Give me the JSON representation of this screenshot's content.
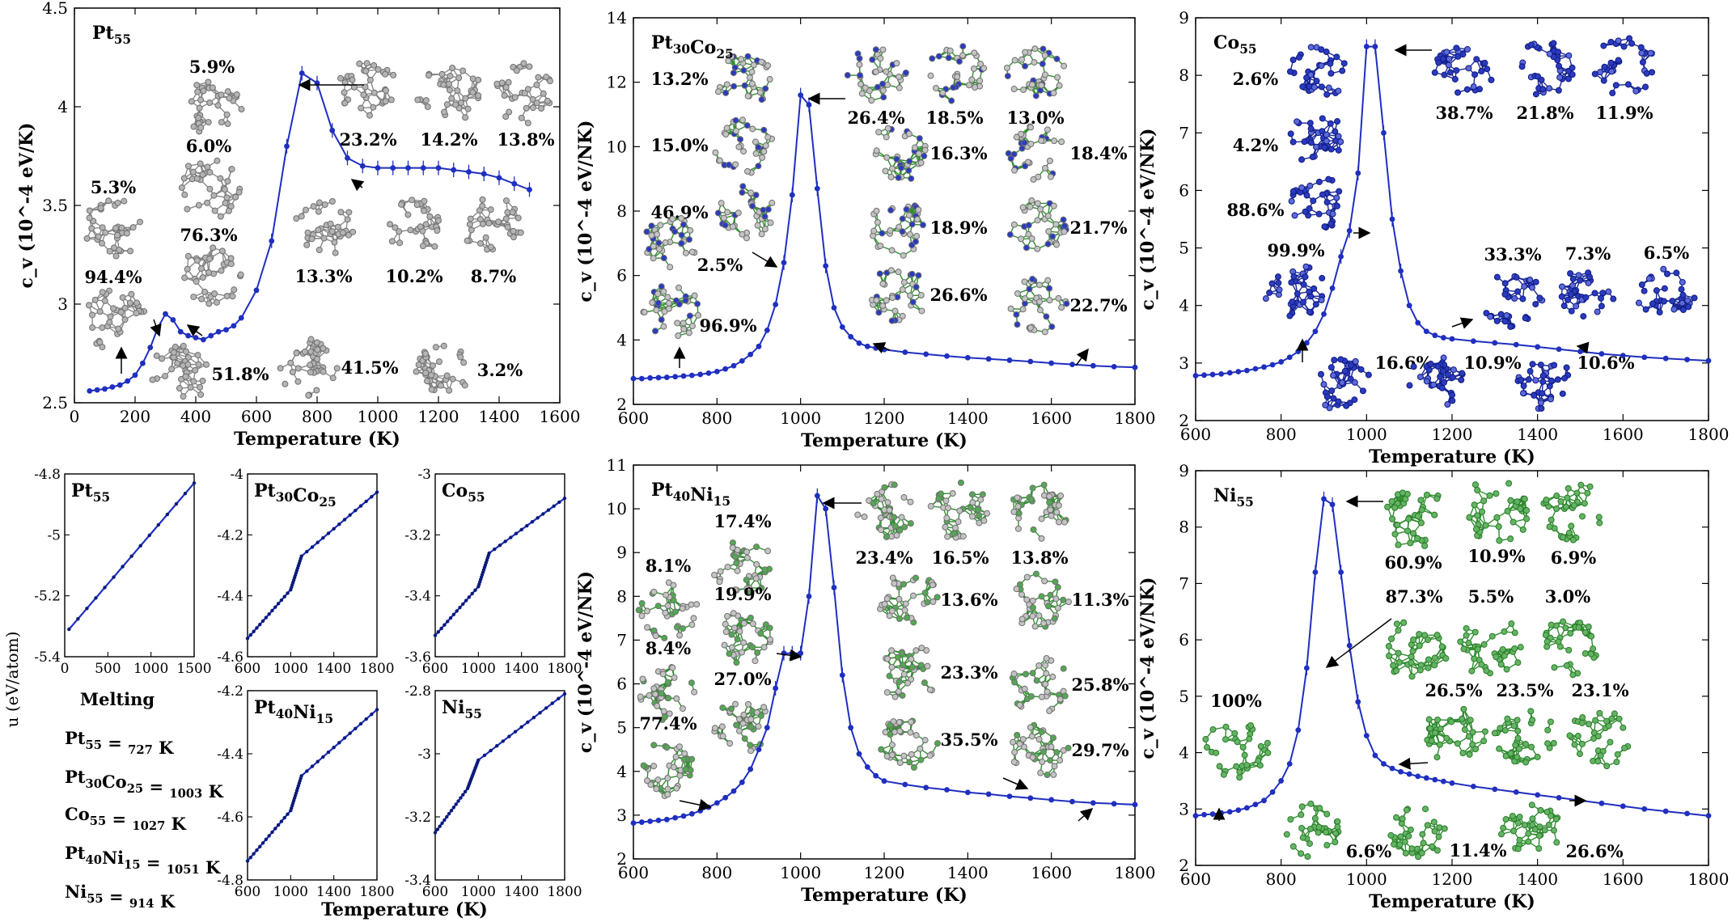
{
  "colors": {
    "curve": "#1f2fbf",
    "pt": "#a8a8a8",
    "co": "#1f2fa8",
    "ni": "#3f9f3f"
  },
  "chart_data": [
    {
      "id": "pt55",
      "type": "line",
      "title": "Pt55",
      "xlabel": "Temperature (K)",
      "ylabel": "c_v (10^-4 eV/K)",
      "xlim": [
        0,
        1600
      ],
      "ylim": [
        2.5,
        4.5
      ],
      "xticks": [
        0,
        200,
        400,
        600,
        800,
        1000,
        1200,
        1400,
        1600
      ],
      "yticks": [
        2.5,
        3.0,
        3.5,
        4.0,
        4.5
      ],
      "cluster_color": "pt",
      "series": [
        {
          "x": [
            50,
            75,
            100,
            125,
            150,
            175,
            200,
            225,
            250,
            275,
            300,
            325,
            350,
            375,
            400,
            425,
            450,
            475,
            500,
            525,
            550,
            600,
            650,
            700,
            750,
            800,
            850,
            900,
            950,
            1000,
            1050,
            1100,
            1150,
            1200,
            1250,
            1300,
            1350,
            1400,
            1450,
            1500
          ],
          "y": [
            2.56,
            2.565,
            2.57,
            2.58,
            2.59,
            2.61,
            2.64,
            2.7,
            2.78,
            2.88,
            2.95,
            2.92,
            2.86,
            2.84,
            2.83,
            2.82,
            2.84,
            2.86,
            2.87,
            2.89,
            2.93,
            3.07,
            3.32,
            3.8,
            4.17,
            4.12,
            3.88,
            3.74,
            3.7,
            3.69,
            3.69,
            3.69,
            3.69,
            3.69,
            3.68,
            3.67,
            3.66,
            3.64,
            3.61,
            3.58
          ]
        }
      ],
      "labels": [
        "5.9%",
        "6.0%",
        "76.3%",
        "5.3%",
        "94.4%",
        "51.8%",
        "41.5%",
        "3.2%",
        "23.2%",
        "14.2%",
        "13.8%",
        "13.3%",
        "10.2%",
        "8.7%"
      ]
    },
    {
      "id": "ptco",
      "type": "line",
      "title": "Pt30Co25",
      "xlabel": "Temperature (K)",
      "ylabel": "c_v (10^-4 eV/NK)",
      "xlim": [
        600,
        1800
      ],
      "ylim": [
        2,
        14
      ],
      "xticks": [
        600,
        800,
        1000,
        1200,
        1400,
        1600,
        1800
      ],
      "yticks": [
        2,
        4,
        6,
        8,
        10,
        12,
        14
      ],
      "cluster_color": "co",
      "series": [
        {
          "x": [
            600,
            620,
            640,
            660,
            680,
            700,
            720,
            740,
            760,
            780,
            800,
            820,
            840,
            860,
            880,
            900,
            920,
            940,
            960,
            980,
            1000,
            1020,
            1040,
            1060,
            1080,
            1100,
            1120,
            1140,
            1160,
            1180,
            1200,
            1250,
            1300,
            1350,
            1400,
            1450,
            1500,
            1550,
            1600,
            1650,
            1700,
            1750,
            1800
          ],
          "y": [
            2.8,
            2.8,
            2.82,
            2.83,
            2.84,
            2.86,
            2.88,
            2.9,
            2.93,
            2.97,
            3.02,
            3.1,
            3.2,
            3.35,
            3.55,
            3.8,
            4.3,
            5.1,
            6.4,
            8.5,
            11.6,
            11.3,
            8.7,
            6.3,
            5.0,
            4.4,
            4.1,
            3.9,
            3.8,
            3.75,
            3.7,
            3.62,
            3.56,
            3.5,
            3.45,
            3.41,
            3.37,
            3.33,
            3.28,
            3.24,
            3.2,
            3.17,
            3.15
          ]
        }
      ],
      "labels": [
        "13.2%",
        "15.0%",
        "46.9%",
        "2.5%",
        "96.9%",
        "26.4%",
        "18.5%",
        "13.0%",
        "16.3%",
        "18.4%",
        "18.9%",
        "21.7%",
        "26.6%",
        "22.7%"
      ]
    },
    {
      "id": "co55",
      "type": "line",
      "title": "Co55",
      "xlabel": "Temperature (K)",
      "ylabel": "c_v (10^-4 eV/NK)",
      "xlim": [
        600,
        1800
      ],
      "ylim": [
        2,
        9
      ],
      "xticks": [
        600,
        800,
        1000,
        1200,
        1400,
        1600,
        1800
      ],
      "yticks": [
        2,
        3,
        4,
        5,
        6,
        7,
        8,
        9
      ],
      "cluster_color": "co",
      "series": [
        {
          "x": [
            600,
            620,
            640,
            660,
            680,
            700,
            720,
            740,
            760,
            780,
            800,
            820,
            840,
            860,
            880,
            900,
            920,
            940,
            960,
            980,
            1000,
            1020,
            1040,
            1060,
            1080,
            1100,
            1120,
            1140,
            1160,
            1180,
            1200,
            1250,
            1300,
            1350,
            1400,
            1450,
            1500,
            1550,
            1600,
            1650,
            1700,
            1750,
            1800
          ],
          "y": [
            2.78,
            2.79,
            2.8,
            2.81,
            2.83,
            2.85,
            2.87,
            2.9,
            2.93,
            2.97,
            3.02,
            3.1,
            3.2,
            3.35,
            3.55,
            3.85,
            4.3,
            4.85,
            5.3,
            6.3,
            8.5,
            8.5,
            7.0,
            5.5,
            4.6,
            4.0,
            3.7,
            3.55,
            3.48,
            3.44,
            3.42,
            3.38,
            3.35,
            3.32,
            3.28,
            3.24,
            3.2,
            3.16,
            3.13,
            3.1,
            3.08,
            3.06,
            3.04
          ]
        }
      ],
      "labels": [
        "2.6%",
        "4.2%",
        "88.6%",
        "99.9%",
        "38.7%",
        "21.8%",
        "11.9%",
        "33.3%",
        "7.3%",
        "6.5%",
        "16.6%",
        "10.9%",
        "10.6%"
      ]
    },
    {
      "id": "ptni",
      "type": "line",
      "title": "Pt40Ni15",
      "xlabel": "Temperature (K)",
      "ylabel": "c_v (10^-4 eV/NK)",
      "xlim": [
        600,
        1800
      ],
      "ylim": [
        2,
        11
      ],
      "xticks": [
        600,
        800,
        1000,
        1200,
        1400,
        1600,
        1800
      ],
      "yticks": [
        2,
        3,
        4,
        5,
        6,
        7,
        8,
        9,
        10,
        11
      ],
      "cluster_color": "ni",
      "series": [
        {
          "x": [
            600,
            620,
            640,
            660,
            680,
            700,
            720,
            740,
            760,
            780,
            800,
            820,
            840,
            860,
            880,
            900,
            920,
            940,
            960,
            980,
            1000,
            1020,
            1040,
            1060,
            1080,
            1100,
            1120,
            1140,
            1160,
            1180,
            1200,
            1250,
            1300,
            1350,
            1400,
            1450,
            1500,
            1550,
            1600,
            1650,
            1700,
            1750,
            1800
          ],
          "y": [
            2.82,
            2.84,
            2.86,
            2.88,
            2.9,
            2.94,
            2.98,
            3.03,
            3.1,
            3.18,
            3.28,
            3.4,
            3.55,
            3.75,
            4.05,
            4.5,
            5.0,
            5.9,
            6.7,
            6.7,
            6.7,
            8.0,
            10.3,
            10.0,
            8.2,
            6.2,
            5.0,
            4.4,
            4.1,
            3.9,
            3.78,
            3.7,
            3.63,
            3.58,
            3.52,
            3.48,
            3.43,
            3.39,
            3.35,
            3.31,
            3.28,
            3.26,
            3.24
          ]
        }
      ],
      "labels": [
        "17.4%",
        "8.1%",
        "19.9%",
        "8.4%",
        "27.0%",
        "77.4%",
        "23.4%",
        "16.5%",
        "13.8%",
        "13.6%",
        "11.3%",
        "23.3%",
        "25.8%",
        "35.5%",
        "29.7%"
      ]
    },
    {
      "id": "ni55",
      "type": "line",
      "title": "Ni55",
      "xlabel": "Temperature (K)",
      "ylabel": "c_v (10^-4 eV/NK)",
      "xlim": [
        600,
        1800
      ],
      "ylim": [
        2,
        9
      ],
      "xticks": [
        600,
        800,
        1000,
        1200,
        1400,
        1600,
        1800
      ],
      "yticks": [
        2,
        3,
        4,
        5,
        6,
        7,
        8,
        9
      ],
      "cluster_color": "ni",
      "series": [
        {
          "x": [
            600,
            620,
            640,
            660,
            680,
            700,
            720,
            740,
            760,
            780,
            800,
            820,
            840,
            860,
            880,
            900,
            920,
            940,
            960,
            980,
            1000,
            1020,
            1040,
            1060,
            1080,
            1100,
            1120,
            1140,
            1160,
            1180,
            1200,
            1250,
            1300,
            1350,
            1400,
            1450,
            1500,
            1550,
            1600,
            1650,
            1700,
            1750,
            1800
          ],
          "y": [
            2.88,
            2.9,
            2.91,
            2.93,
            2.95,
            2.98,
            3.02,
            3.08,
            3.15,
            3.3,
            3.5,
            3.8,
            4.4,
            5.5,
            7.2,
            8.5,
            8.4,
            7.2,
            5.9,
            4.9,
            4.3,
            3.95,
            3.8,
            3.72,
            3.66,
            3.62,
            3.58,
            3.55,
            3.52,
            3.49,
            3.46,
            3.4,
            3.35,
            3.3,
            3.25,
            3.2,
            3.15,
            3.1,
            3.05,
            3.0,
            2.96,
            2.92,
            2.88
          ]
        }
      ],
      "labels": [
        "60.9%",
        "10.9%",
        "6.9%",
        "87.3%",
        "5.5%",
        "3.0%",
        "100%",
        "26.5%",
        "23.5%",
        "23.1%",
        "6.6%",
        "11.4%",
        "26.6%"
      ]
    },
    {
      "id": "u_pt",
      "type": "line",
      "title": "Pt55",
      "xlim": [
        0,
        1500
      ],
      "ylim": [
        -5.4,
        -4.8
      ],
      "xticks": [
        0,
        500,
        1000,
        1500
      ],
      "yticks": [
        -5.4,
        -5.2,
        -5.0,
        -4.8
      ],
      "series": [
        {
          "x": [
            50,
            1500
          ],
          "y": [
            -5.31,
            -4.83
          ]
        }
      ]
    },
    {
      "id": "u_ptco",
      "type": "line",
      "title": "Pt30Co25",
      "xlim": [
        600,
        1800
      ],
      "ylim": [
        -4.6,
        -4.0
      ],
      "xticks": [
        600,
        1000,
        1400,
        1800
      ],
      "yticks": [
        -4.6,
        -4.4,
        -4.2,
        -4.0
      ],
      "series": [
        {
          "x": [
            600,
            1000,
            1100,
            1800
          ],
          "y": [
            -4.54,
            -4.38,
            -4.27,
            -4.06
          ]
        }
      ]
    },
    {
      "id": "u_co",
      "type": "line",
      "title": "Co55",
      "xlim": [
        600,
        1800
      ],
      "ylim": [
        -3.6,
        -3.0
      ],
      "xticks": [
        600,
        1000,
        1400,
        1800
      ],
      "yticks": [
        -3.6,
        -3.4,
        -3.2,
        -3.0
      ],
      "series": [
        {
          "x": [
            600,
            1000,
            1100,
            1800
          ],
          "y": [
            -3.53,
            -3.37,
            -3.26,
            -3.08
          ]
        }
      ]
    },
    {
      "id": "u_ptni",
      "type": "line",
      "title": "Pt40Ni15",
      "xlim": [
        600,
        1800
      ],
      "ylim": [
        -4.8,
        -4.2
      ],
      "xticks": [
        600,
        1000,
        1400,
        1800
      ],
      "yticks": [
        -4.8,
        -4.6,
        -4.4,
        -4.2
      ],
      "series": [
        {
          "x": [
            600,
            1000,
            1100,
            1800
          ],
          "y": [
            -4.74,
            -4.58,
            -4.47,
            -4.26
          ]
        }
      ]
    },
    {
      "id": "u_ni",
      "type": "line",
      "title": "Ni55",
      "xlim": [
        600,
        1800
      ],
      "ylim": [
        -3.4,
        -2.8
      ],
      "xticks": [
        600,
        1000,
        1400,
        1800
      ],
      "yticks": [
        -3.4,
        -3.2,
        -3.0,
        -2.8
      ],
      "series": [
        {
          "x": [
            600,
            900,
            1000,
            1800
          ],
          "y": [
            -3.25,
            -3.11,
            -3.02,
            -2.81
          ]
        }
      ]
    }
  ],
  "u_axis": {
    "ylabel": "u (eV/atom)",
    "xlabel": "Temperature (K)"
  },
  "melting": {
    "heading": "Melting",
    "rows": [
      "Pt55 = 727 K",
      "Pt30Co25 = 1003 K",
      "Co55 = 1027 K",
      "Pt40Ni15 = 1051 K",
      "Ni55 = 914 K"
    ]
  }
}
